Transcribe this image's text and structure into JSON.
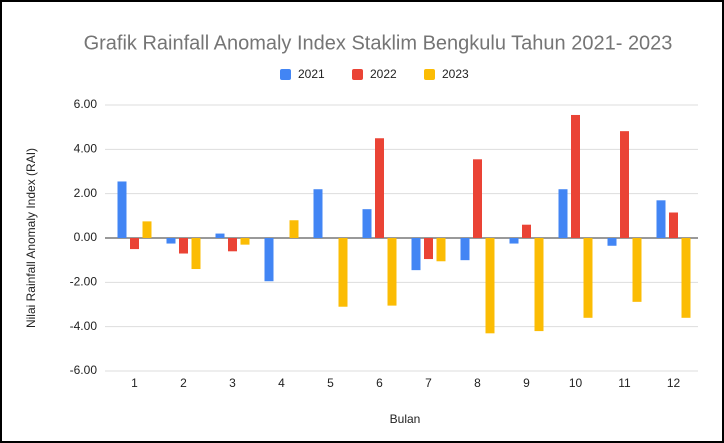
{
  "chart_data": {
    "type": "bar",
    "title": "Grafik Rainfall Anomaly Index Staklim Bengkulu Tahun 2021- 2023",
    "x_label": "Bulan",
    "y_label": "Nilai Rainfall Anomaly Index (RAI)",
    "categories": [
      "1",
      "2",
      "3",
      "4",
      "5",
      "6",
      "7",
      "8",
      "9",
      "10",
      "11",
      "12"
    ],
    "series": [
      {
        "name": "2021",
        "color": "#4285f4",
        "values": [
          2.55,
          -0.25,
          0.2,
          -1.95,
          2.2,
          1.3,
          -1.45,
          -1.0,
          -0.25,
          2.2,
          -0.35,
          1.7
        ]
      },
      {
        "name": "2022",
        "color": "#ea4335",
        "values": [
          -0.5,
          -0.7,
          -0.6,
          null,
          null,
          4.5,
          -0.95,
          3.55,
          0.6,
          5.55,
          4.82,
          1.15
        ]
      },
      {
        "name": "2023",
        "color": "#fbbc04",
        "values": [
          0.75,
          -1.4,
          -0.3,
          0.8,
          -3.1,
          -3.05,
          -1.05,
          -4.3,
          -4.2,
          -3.6,
          -2.88,
          -3.6
        ]
      }
    ],
    "ylim": [
      -6,
      6
    ],
    "yticks": [
      {
        "value": -6,
        "label": "-6.00"
      },
      {
        "value": -4,
        "label": "-4.00"
      },
      {
        "value": -2,
        "label": "-2.00"
      },
      {
        "value": 0,
        "label": "0.00"
      },
      {
        "value": 2,
        "label": "2.00"
      },
      {
        "value": 4,
        "label": "4.00"
      },
      {
        "value": 6,
        "label": "6.00"
      }
    ],
    "grid": true,
    "legend": "top"
  }
}
